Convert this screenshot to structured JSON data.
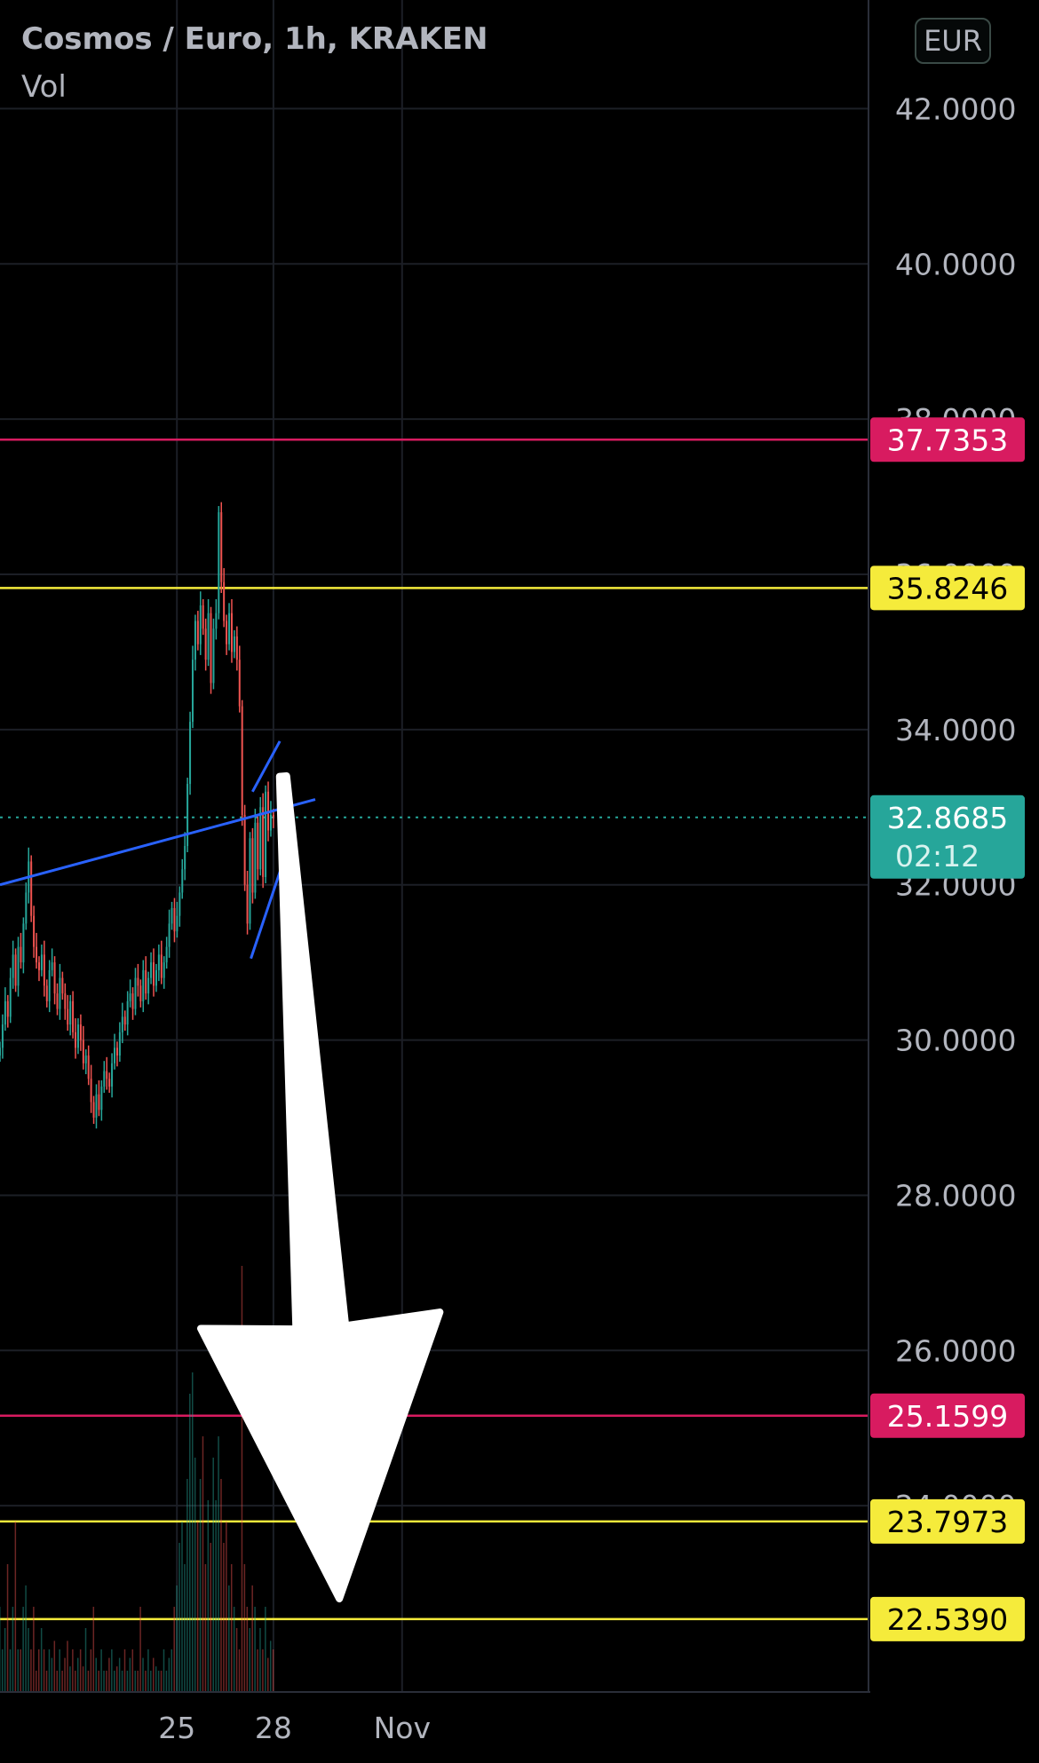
{
  "header": {
    "title": "Cosmos / Euro, 1h, KRAKEN",
    "volume_label": "Vol",
    "currency": "EUR"
  },
  "chart_data": {
    "type": "candlestick",
    "symbol": "Cosmos / Euro",
    "interval": "1h",
    "exchange": "KRAKEN",
    "currency": "EUR",
    "grid": true,
    "y_axis": {
      "position": "right",
      "range": [
        21.6,
        43.4
      ],
      "tick_labels": [
        "42.0000",
        "40.0000",
        "38.0000",
        "36.0000",
        "34.0000",
        "32.0000",
        "30.0000",
        "28.0000",
        "26.0000",
        "24.0000"
      ],
      "tick_values": [
        42,
        40,
        38,
        36,
        34,
        32,
        30,
        28,
        26,
        24
      ]
    },
    "x_axis": {
      "range": [
        -5.5,
        21.5
      ],
      "tick_labels": [
        {
          "label": "25",
          "day": 0
        },
        {
          "label": "28",
          "day": 3
        },
        {
          "label": "Nov",
          "day": 7
        }
      ]
    },
    "horizontal_levels": [
      {
        "price": 37.7353,
        "label": "37.7353",
        "color": "#d81b60",
        "text_color": "#ffffff"
      },
      {
        "price": 35.8246,
        "label": "35.8246",
        "color": "#f5eb3b",
        "text_color": "#000000"
      },
      {
        "price": 25.1599,
        "label": "25.1599",
        "color": "#d81b60",
        "text_color": "#ffffff"
      },
      {
        "price": 23.7973,
        "label": "23.7973",
        "color": "#f5eb3b",
        "text_color": "#000000"
      },
      {
        "price": 22.539,
        "label": "22.5390",
        "color": "#f5eb3b",
        "text_color": "#000000"
      }
    ],
    "last_price": {
      "price": 32.8685,
      "label": "32.8685",
      "countdown": "02:12",
      "color": "#26a69a"
    },
    "candles_hourly_closes": [
      29.9,
      30.2,
      30.5,
      30.3,
      30.8,
      31.1,
      30.7,
      31.2,
      31.0,
      31.5,
      31.9,
      32.3,
      31.6,
      31.2,
      31.0,
      30.9,
      31.1,
      30.7,
      30.5,
      30.9,
      31.0,
      30.6,
      30.4,
      30.8,
      30.6,
      30.4,
      30.2,
      30.5,
      30.1,
      29.9,
      30.2,
      30.0,
      29.7,
      29.8,
      29.5,
      29.2,
      29.0,
      29.3,
      29.1,
      29.4,
      29.6,
      29.5,
      29.4,
      29.7,
      29.9,
      29.8,
      30.1,
      30.3,
      30.2,
      30.5,
      30.6,
      30.4,
      30.8,
      30.7,
      30.5,
      30.9,
      30.6,
      30.8,
      31.0,
      30.7,
      30.9,
      31.1,
      30.8,
      31.0,
      31.2,
      31.5,
      31.7,
      31.4,
      31.6,
      31.9,
      32.2,
      32.5,
      33.3,
      34.1,
      34.9,
      35.4,
      35.1,
      35.6,
      35.3,
      34.9,
      35.5,
      34.6,
      35.3,
      35.5,
      36.8,
      35.9,
      35.4,
      35.1,
      35.5,
      35.0,
      35.2,
      34.9,
      34.3,
      32.9,
      32.0,
      31.5,
      32.6,
      31.9,
      32.8,
      32.2,
      33.0,
      32.1,
      33.2,
      32.7,
      32.9,
      32.87
    ],
    "candles_hourly_volume_relative": [
      0.2,
      0.1,
      0.15,
      0.3,
      0.1,
      0.2,
      0.4,
      0.1,
      0.1,
      0.2,
      0.25,
      0.15,
      0.1,
      0.2,
      0.05,
      0.1,
      0.15,
      0.1,
      0.05,
      0.1,
      0.08,
      0.12,
      0.05,
      0.1,
      0.05,
      0.08,
      0.12,
      0.06,
      0.1,
      0.05,
      0.08,
      0.1,
      0.06,
      0.15,
      0.05,
      0.1,
      0.2,
      0.08,
      0.05,
      0.1,
      0.05,
      0.05,
      0.08,
      0.1,
      0.05,
      0.06,
      0.08,
      0.05,
      0.1,
      0.05,
      0.08,
      0.1,
      0.05,
      0.05,
      0.2,
      0.08,
      0.05,
      0.1,
      0.05,
      0.08,
      0.06,
      0.05,
      0.05,
      0.1,
      0.05,
      0.08,
      0.1,
      0.2,
      0.25,
      0.35,
      0.4,
      0.3,
      0.5,
      0.7,
      0.75,
      0.55,
      0.4,
      0.5,
      0.6,
      0.3,
      0.45,
      0.35,
      0.55,
      0.45,
      0.6,
      0.5,
      0.35,
      0.4,
      0.25,
      0.3,
      0.2,
      0.15,
      0.1,
      1.0,
      0.3,
      0.2,
      0.15,
      0.25,
      0.2,
      0.1,
      0.15,
      0.1,
      0.2,
      0.08,
      0.12,
      0.1
    ],
    "trend_lines": [
      {
        "name": "long-rising",
        "from": {
          "day": -5.5,
          "price": 32.0
        },
        "to": {
          "day": 4.3,
          "price": 33.1
        },
        "color": "#2962ff"
      },
      {
        "name": "wedge-upper",
        "from": {
          "day": 2.35,
          "price": 33.2
        },
        "to": {
          "day": 3.2,
          "price": 33.85
        },
        "color": "#2962ff"
      },
      {
        "name": "wedge-lower",
        "from": {
          "day": 2.3,
          "price": 31.05
        },
        "to": {
          "day": 3.35,
          "price": 32.35
        },
        "color": "#2962ff"
      }
    ],
    "annotation_arrow": {
      "direction": "down",
      "color": "#ffffff",
      "from": {
        "day": 3.3,
        "price": 33.4
      },
      "to": {
        "day": 5.05,
        "price": 22.8
      }
    }
  }
}
